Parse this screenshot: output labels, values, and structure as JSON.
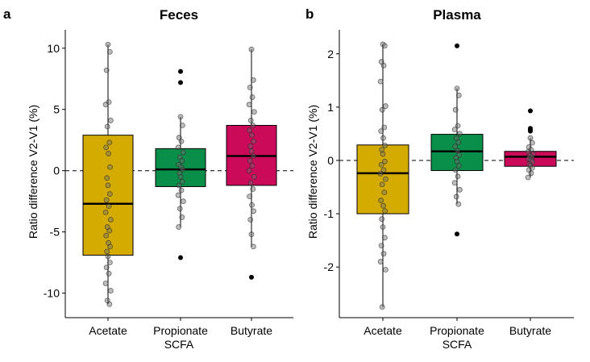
{
  "chart_data": [
    {
      "type": "boxplot",
      "panel_label": "a",
      "title": "Feces",
      "xlabel": "SCFA",
      "ylabel": "Ratio difference V2-V1 (%)",
      "ylim": [
        -12,
        11.5
      ],
      "yticks": [
        -10,
        -5,
        0,
        5,
        10
      ],
      "ytick_labels": [
        "-10",
        "-5",
        "0",
        "5",
        "10"
      ],
      "reference_line": 0,
      "categories": [
        "Acetate",
        "Propionate",
        "Butyrate"
      ],
      "colors": [
        "#D4AB00",
        "#0A8F4A",
        "#CC0A5A"
      ],
      "boxes": [
        {
          "name": "Acetate",
          "whisker_low": -10.9,
          "q1": -6.9,
          "median": -2.7,
          "q3": 2.9,
          "whisker_high": 10.3,
          "outliers": [],
          "points": [
            10.3,
            9.7,
            8.2,
            5.6,
            5.4,
            4.1,
            3.6,
            2.3,
            1.9,
            1.4,
            0.3,
            -0.6,
            -1.2,
            -1.9,
            -2.4,
            -2.9,
            -3.4,
            -4.0,
            -4.6,
            -4.9,
            -5.3,
            -5.9,
            -6.2,
            -6.6,
            -7.0,
            -7.5,
            -7.9,
            -8.4,
            -9.2,
            -9.8,
            -10.6,
            -10.9
          ]
        },
        {
          "name": "Propionate",
          "whisker_low": -4.6,
          "q1": -1.3,
          "median": 0.1,
          "q3": 1.8,
          "whisker_high": 4.4,
          "outliers": [
            8.1,
            7.2,
            -7.1
          ],
          "points": [
            4.4,
            3.7,
            2.7,
            2.4,
            1.9,
            1.5,
            1.1,
            0.8,
            0.5,
            0.3,
            0.1,
            -0.2,
            -0.5,
            -0.9,
            -1.2,
            -1.6,
            -2.0,
            -2.5,
            -3.1,
            -3.8,
            -4.6
          ]
        },
        {
          "name": "Butyrate",
          "whisker_low": -6.2,
          "q1": -1.2,
          "median": 1.2,
          "q3": 3.7,
          "whisker_high": 9.9,
          "outliers": [
            -8.7
          ],
          "points": [
            9.9,
            7.4,
            6.8,
            6.0,
            5.4,
            4.8,
            4.1,
            3.7,
            3.3,
            2.9,
            2.4,
            2.0,
            1.6,
            1.2,
            0.8,
            0.4,
            0.0,
            -0.5,
            -1.0,
            -1.5,
            -2.1,
            -2.8,
            -3.3,
            -4.0,
            -5.2,
            -6.2
          ]
        }
      ]
    },
    {
      "type": "boxplot",
      "panel_label": "b",
      "title": "Plasma",
      "xlabel": "SCFA",
      "ylabel": "Ratio difference V2-V1 (%)",
      "ylim": [
        -2.95,
        2.45
      ],
      "yticks": [
        -2,
        -1,
        0,
        1,
        2
      ],
      "ytick_labels": [
        "-2",
        "-1",
        "0",
        "1",
        "2"
      ],
      "reference_line": 0,
      "categories": [
        "Acetate",
        "Propionate",
        "Butyrate"
      ],
      "colors": [
        "#D4AB00",
        "#0A8F4A",
        "#CC0A5A"
      ],
      "boxes": [
        {
          "name": "Acetate",
          "whisker_low": -2.75,
          "q1": -1.0,
          "median": -0.24,
          "q3": 0.29,
          "whisker_high": 2.18,
          "outliers": [],
          "points": [
            2.18,
            2.15,
            1.85,
            1.78,
            1.48,
            1.02,
            0.95,
            0.62,
            0.55,
            0.42,
            0.28,
            0.2,
            0.12,
            -0.02,
            -0.08,
            -0.18,
            -0.25,
            -0.35,
            -0.45,
            -0.6,
            -0.75,
            -0.85,
            -0.95,
            -1.1,
            -1.25,
            -1.45,
            -1.6,
            -1.75,
            -1.9,
            -2.05,
            -2.75
          ]
        },
        {
          "name": "Propionate",
          "whisker_low": -0.82,
          "q1": -0.19,
          "median": 0.17,
          "q3": 0.49,
          "whisker_high": 1.35,
          "outliers": [
            2.15,
            -1.38
          ],
          "points": [
            1.35,
            1.22,
            0.95,
            0.65,
            0.58,
            0.5,
            0.42,
            0.34,
            0.26,
            0.18,
            0.1,
            0.05,
            -0.02,
            -0.1,
            -0.18,
            -0.3,
            -0.42,
            -0.55,
            -0.68,
            -0.82
          ]
        },
        {
          "name": "Butyrate",
          "whisker_low": -0.32,
          "q1": -0.11,
          "median": 0.07,
          "q3": 0.17,
          "whisker_high": 0.42,
          "outliers": [
            0.93,
            0.6,
            0.57,
            0.55
          ],
          "points": [
            0.42,
            0.33,
            0.25,
            0.2,
            0.16,
            0.12,
            0.09,
            0.06,
            0.03,
            0.0,
            -0.03,
            -0.07,
            -0.1,
            -0.14,
            -0.18,
            -0.24,
            -0.32
          ]
        }
      ]
    }
  ]
}
